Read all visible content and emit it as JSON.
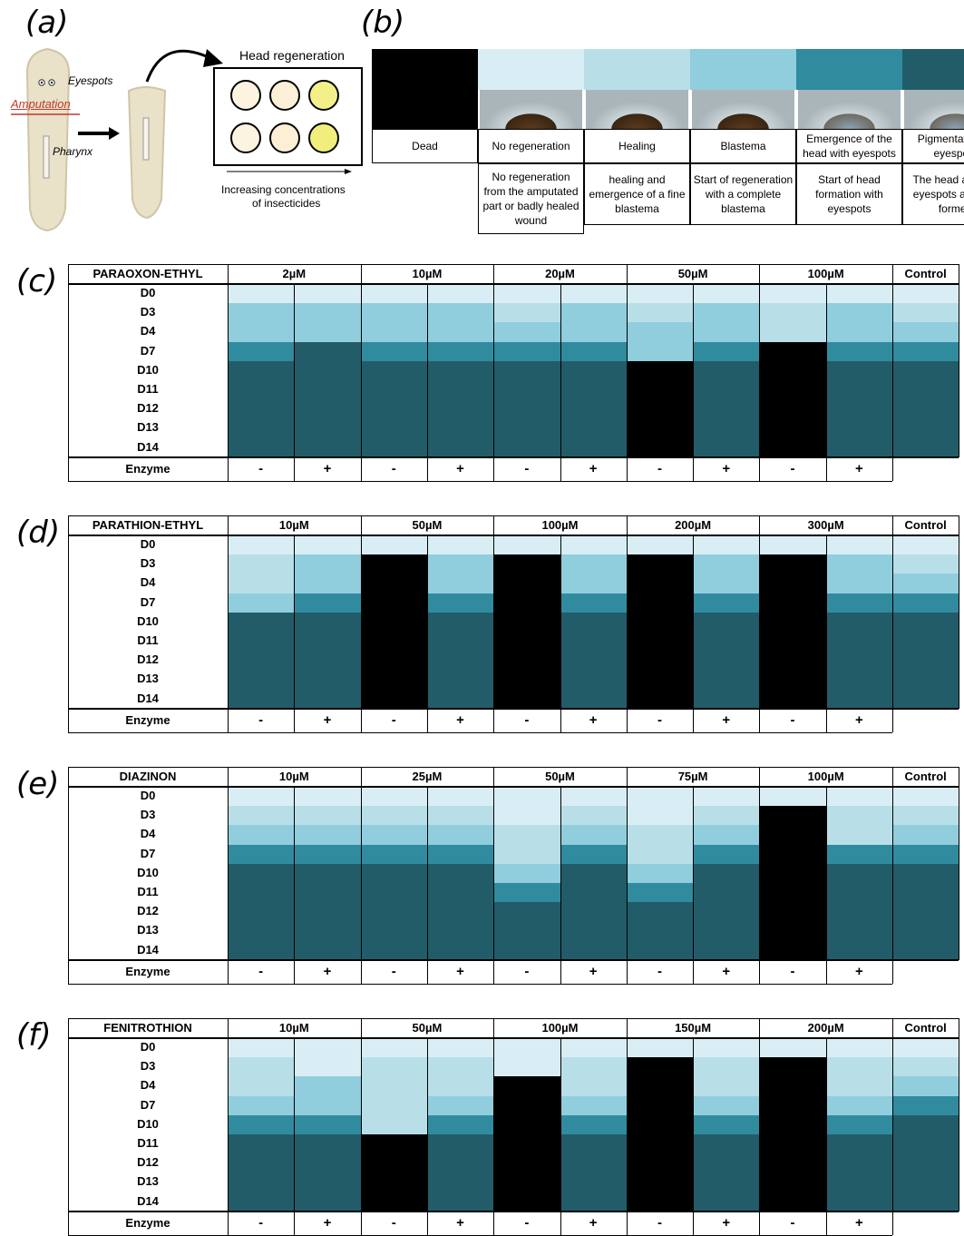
{
  "colors": {
    "0": "#000000",
    "1": "#d9eef4",
    "2": "#b8dfe8",
    "3": "#90cedd",
    "4": "#318b9f",
    "5": "#235c69"
  },
  "panel_a": {
    "label": "(a)",
    "eyespots": "Eyespots",
    "amputation": "Amputation",
    "pharynx": "Pharynx",
    "head_regeneration": "Head regeneration",
    "axis_label_1": "Increasing concentrations",
    "axis_label_2": "of insecticides",
    "well_colors": [
      "#fcf3e0",
      "#fcf0d8",
      "#f4f089",
      "#fcf3e0",
      "#fcefd6",
      "#f2ee7e"
    ]
  },
  "panel_b": {
    "label": "(b)",
    "stages": [
      {
        "title": "Dead",
        "desc": "",
        "color": "0"
      },
      {
        "title": "No regeneration",
        "desc": "No regeneration from the amputated part or badly healed wound",
        "color": "1"
      },
      {
        "title": "Healing",
        "desc": "healing and emergence of a fine blastema",
        "color": "2"
      },
      {
        "title": "Blastema",
        "desc": "Start of regeneration with a complete blastema",
        "color": "3"
      },
      {
        "title": "Emergence of the head with eyespots",
        "desc": "Start of head formation with eyespots",
        "color": "4"
      },
      {
        "title": "Pigmentation of eyespots",
        "desc": "The head and the eyespots are fully formed",
        "color": "5"
      }
    ]
  },
  "days": [
    "D0",
    "D3",
    "D4",
    "D7",
    "D10",
    "D11",
    "D12",
    "D13",
    "D14"
  ],
  "enzyme_label": "Enzyme",
  "enzyme_signs": [
    "-",
    "+",
    "-",
    "+",
    "-",
    "+",
    "-",
    "+",
    "-",
    "+"
  ],
  "control_label": "Control",
  "grids": [
    {
      "label": "(c)",
      "compound": "PARAOXON-ETHYL",
      "concentrations": [
        "2µM",
        "10µM",
        "20µM",
        "50µM",
        "100µM"
      ],
      "columns": [
        [
          1,
          3,
          3,
          4,
          5,
          5,
          5,
          5,
          5
        ],
        [
          1,
          3,
          3,
          5,
          5,
          5,
          5,
          5,
          5
        ],
        [
          1,
          3,
          3,
          4,
          5,
          5,
          5,
          5,
          5
        ],
        [
          1,
          3,
          3,
          4,
          5,
          5,
          5,
          5,
          5
        ],
        [
          1,
          2,
          3,
          4,
          5,
          5,
          5,
          5,
          5
        ],
        [
          1,
          3,
          3,
          4,
          5,
          5,
          5,
          5,
          5
        ],
        [
          1,
          2,
          3,
          3,
          0,
          0,
          0,
          0,
          0
        ],
        [
          1,
          3,
          3,
          4,
          5,
          5,
          5,
          5,
          5
        ],
        [
          1,
          2,
          2,
          0,
          0,
          0,
          0,
          0,
          0
        ],
        [
          1,
          3,
          3,
          4,
          5,
          5,
          5,
          5,
          5
        ],
        [
          1,
          2,
          3,
          4,
          5,
          5,
          5,
          5,
          5
        ]
      ]
    },
    {
      "label": "(d)",
      "compound": "PARATHION-ETHYL",
      "concentrations": [
        "10µM",
        "50µM",
        "100µM",
        "200µM",
        "300µM"
      ],
      "columns": [
        [
          1,
          2,
          2,
          3,
          5,
          5,
          5,
          5,
          5
        ],
        [
          1,
          3,
          3,
          4,
          5,
          5,
          5,
          5,
          5
        ],
        [
          1,
          0,
          0,
          0,
          0,
          0,
          0,
          0,
          0
        ],
        [
          1,
          3,
          3,
          4,
          5,
          5,
          5,
          5,
          5
        ],
        [
          1,
          0,
          0,
          0,
          0,
          0,
          0,
          0,
          0
        ],
        [
          1,
          3,
          3,
          4,
          5,
          5,
          5,
          5,
          5
        ],
        [
          1,
          0,
          0,
          0,
          0,
          0,
          0,
          0,
          0
        ],
        [
          1,
          3,
          3,
          4,
          5,
          5,
          5,
          5,
          5
        ],
        [
          1,
          0,
          0,
          0,
          0,
          0,
          0,
          0,
          0
        ],
        [
          1,
          3,
          3,
          4,
          5,
          5,
          5,
          5,
          5
        ],
        [
          1,
          2,
          3,
          4,
          5,
          5,
          5,
          5,
          5
        ]
      ]
    },
    {
      "label": "(e)",
      "compound": "DIAZINON",
      "concentrations": [
        "10µM",
        "25µM",
        "50µM",
        "75µM",
        "100µM"
      ],
      "columns": [
        [
          1,
          2,
          3,
          4,
          5,
          5,
          5,
          5,
          5
        ],
        [
          1,
          2,
          3,
          4,
          5,
          5,
          5,
          5,
          5
        ],
        [
          1,
          2,
          3,
          4,
          5,
          5,
          5,
          5,
          5
        ],
        [
          1,
          2,
          3,
          4,
          5,
          5,
          5,
          5,
          5
        ],
        [
          1,
          1,
          2,
          2,
          3,
          4,
          5,
          5,
          5
        ],
        [
          1,
          2,
          3,
          4,
          5,
          5,
          5,
          5,
          5
        ],
        [
          1,
          1,
          2,
          2,
          3,
          4,
          5,
          5,
          5
        ],
        [
          1,
          2,
          3,
          4,
          5,
          5,
          5,
          5,
          5
        ],
        [
          1,
          0,
          0,
          0,
          0,
          0,
          0,
          0,
          0
        ],
        [
          1,
          2,
          2,
          4,
          5,
          5,
          5,
          5,
          5
        ],
        [
          1,
          2,
          3,
          4,
          5,
          5,
          5,
          5,
          5
        ]
      ]
    },
    {
      "label": "(f)",
      "compound": "FENITROTHION",
      "concentrations": [
        "10µM",
        "50µM",
        "100µM",
        "150µM",
        "200µM"
      ],
      "columns": [
        [
          1,
          2,
          2,
          3,
          4,
          5,
          5,
          5,
          5
        ],
        [
          1,
          1,
          3,
          3,
          4,
          5,
          5,
          5,
          5
        ],
        [
          1,
          2,
          2,
          2,
          2,
          0,
          0,
          0,
          0
        ],
        [
          1,
          2,
          2,
          3,
          4,
          5,
          5,
          5,
          5
        ],
        [
          1,
          1,
          0,
          0,
          0,
          0,
          0,
          0,
          0
        ],
        [
          1,
          2,
          2,
          3,
          4,
          5,
          5,
          5,
          5
        ],
        [
          1,
          0,
          0,
          0,
          0,
          0,
          0,
          0,
          0
        ],
        [
          1,
          2,
          2,
          3,
          4,
          5,
          5,
          5,
          5
        ],
        [
          1,
          0,
          0,
          0,
          0,
          0,
          0,
          0,
          0
        ],
        [
          1,
          2,
          2,
          3,
          4,
          5,
          5,
          5,
          5
        ],
        [
          1,
          2,
          3,
          4,
          5,
          5,
          5,
          5,
          5
        ]
      ]
    }
  ]
}
